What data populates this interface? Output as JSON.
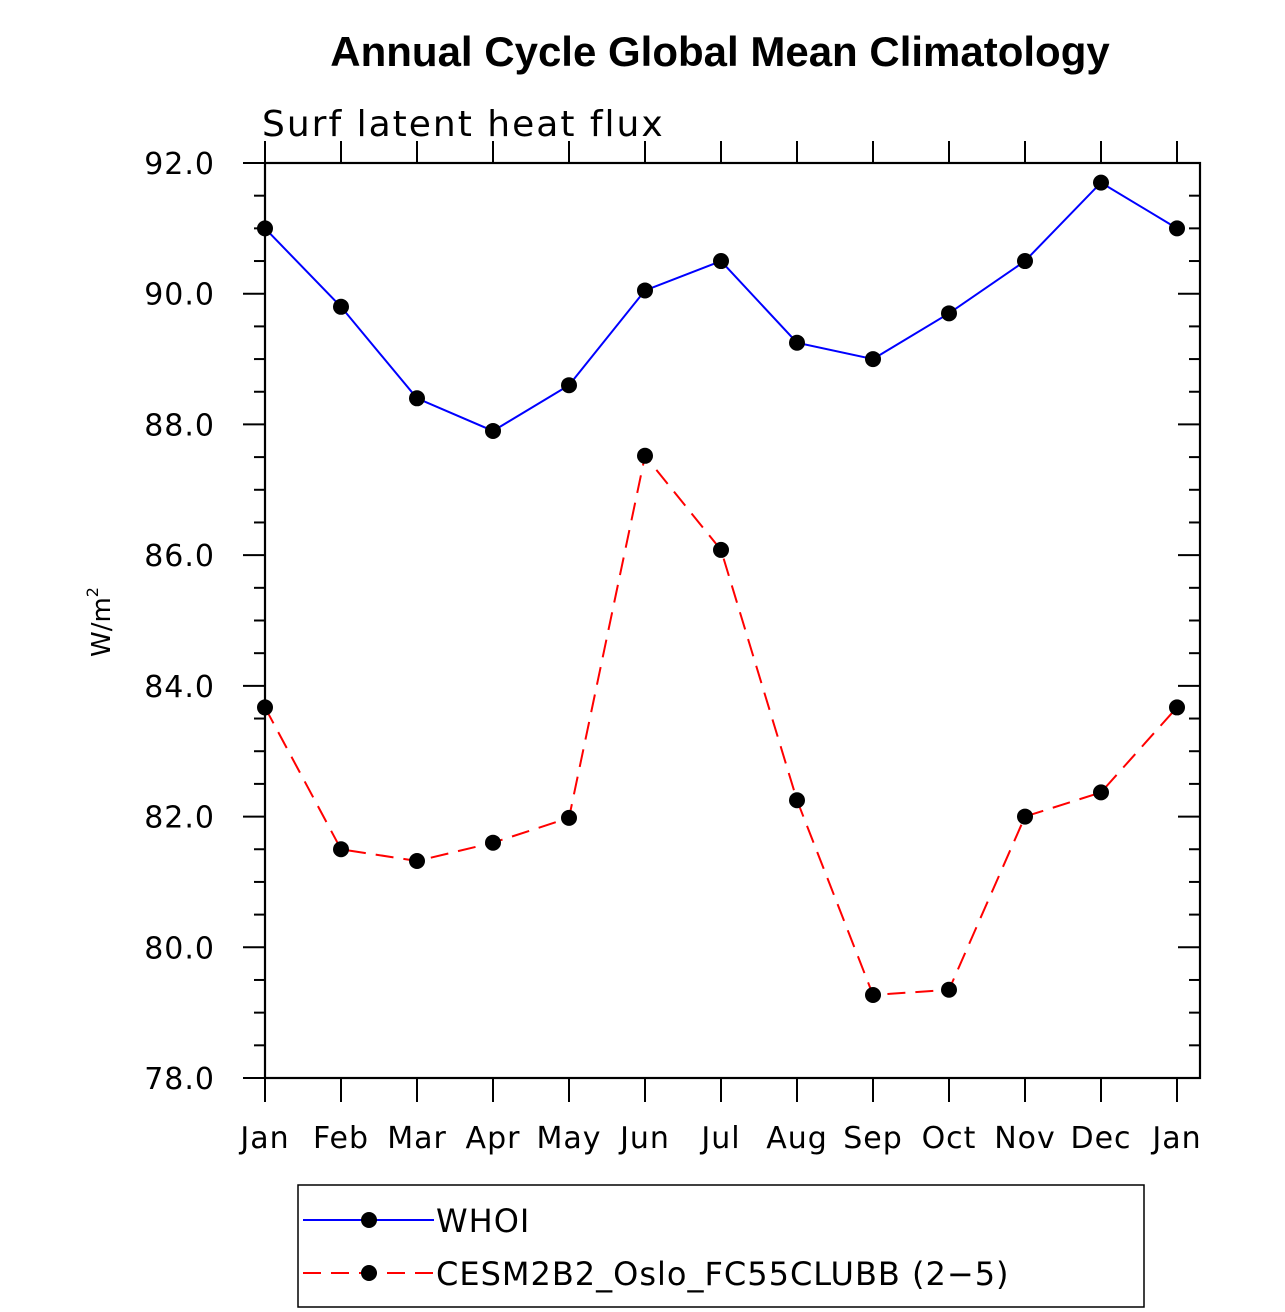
{
  "chart_data": {
    "type": "line",
    "title": "Annual Cycle Global Mean Climatology",
    "subtitle": "Surf latent heat flux",
    "xlabel": "",
    "ylabel": "W/m",
    "ylabel_superscript": "2",
    "categories": [
      "Jan",
      "Feb",
      "Mar",
      "Apr",
      "May",
      "Jun",
      "Jul",
      "Aug",
      "Sep",
      "Oct",
      "Nov",
      "Dec",
      "Jan"
    ],
    "ylim": [
      78.0,
      92.0
    ],
    "yticks": [
      78.0,
      80.0,
      82.0,
      84.0,
      86.0,
      88.0,
      90.0,
      92.0
    ],
    "ytick_labels": [
      "78.0",
      "80.0",
      "82.0",
      "84.0",
      "86.0",
      "88.0",
      "90.0",
      "92.0"
    ],
    "grid": false,
    "legend_position": "bottom",
    "series": [
      {
        "name": "WHOI",
        "color": "#0000ff",
        "dash": "solid",
        "marker": "circle",
        "values": [
          91.0,
          89.8,
          88.4,
          87.9,
          88.6,
          90.05,
          90.5,
          89.25,
          89.0,
          89.7,
          90.5,
          91.7,
          91.0
        ]
      },
      {
        "name": "CESM2B2_Oslo_FC55CLUBB (2−5)",
        "color": "#ff0000",
        "dash": "dashed",
        "marker": "circle",
        "values": [
          83.67,
          81.5,
          81.32,
          81.6,
          81.98,
          87.52,
          86.08,
          82.25,
          79.27,
          79.35,
          82.0,
          82.37,
          83.67
        ]
      }
    ]
  }
}
